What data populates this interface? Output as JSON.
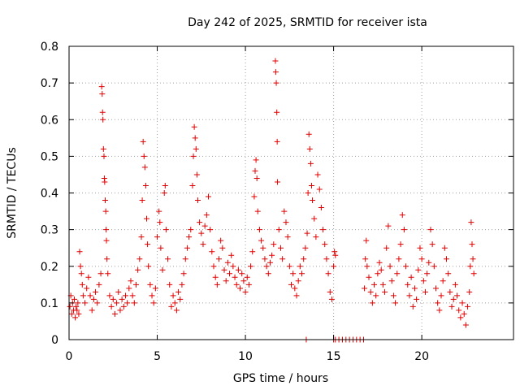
{
  "chart_data": {
    "type": "scatter",
    "title": "Day 242 of 2025, SRMTID for receiver ista",
    "xlabel": "GPS time / hours",
    "ylabel": "SRMTID / TECUs",
    "xlim": [
      0,
      25.2
    ],
    "ylim": [
      0,
      0.8
    ],
    "x_ticks": [
      0,
      5,
      10,
      15,
      20
    ],
    "y_ticks": [
      0,
      0.1,
      0.2,
      0.3,
      0.4,
      0.5,
      0.6,
      0.7,
      0.8
    ],
    "x_tick_labels": [
      "0",
      "5",
      "10",
      "15",
      "20"
    ],
    "y_tick_labels": [
      "0",
      "0.1",
      "0.2",
      "0.3",
      "0.4",
      "0.5",
      "0.6",
      "0.7",
      "0.8"
    ],
    "grid": true,
    "marker": "+",
    "color": "#e00000",
    "series": [
      {
        "name": "SRMTID",
        "points": [
          [
            0.05,
            0.09
          ],
          [
            0.1,
            0.12
          ],
          [
            0.15,
            0.07
          ],
          [
            0.2,
            0.1
          ],
          [
            0.25,
            0.08
          ],
          [
            0.3,
            0.11
          ],
          [
            0.35,
            0.06
          ],
          [
            0.4,
            0.09
          ],
          [
            0.45,
            0.08
          ],
          [
            0.5,
            0.1
          ],
          [
            0.55,
            0.07
          ],
          [
            0.6,
            0.24
          ],
          [
            0.65,
            0.2
          ],
          [
            0.7,
            0.18
          ],
          [
            0.75,
            0.15
          ],
          [
            0.8,
            0.12
          ],
          [
            0.9,
            0.1
          ],
          [
            1.0,
            0.14
          ],
          [
            1.1,
            0.17
          ],
          [
            1.2,
            0.12
          ],
          [
            1.3,
            0.08
          ],
          [
            1.4,
            0.11
          ],
          [
            1.5,
            0.13
          ],
          [
            1.6,
            0.1
          ],
          [
            1.7,
            0.15
          ],
          [
            1.8,
            0.18
          ],
          [
            1.85,
            0.69
          ],
          [
            1.88,
            0.67
          ],
          [
            1.9,
            0.62
          ],
          [
            1.92,
            0.6
          ],
          [
            1.95,
            0.52
          ],
          [
            1.98,
            0.5
          ],
          [
            2.0,
            0.44
          ],
          [
            2.02,
            0.43
          ],
          [
            2.05,
            0.38
          ],
          [
            2.08,
            0.35
          ],
          [
            2.1,
            0.3
          ],
          [
            2.12,
            0.27
          ],
          [
            2.15,
            0.22
          ],
          [
            2.2,
            0.18
          ],
          [
            2.3,
            0.12
          ],
          [
            2.4,
            0.09
          ],
          [
            2.5,
            0.11
          ],
          [
            2.6,
            0.07
          ],
          [
            2.7,
            0.1
          ],
          [
            2.8,
            0.13
          ],
          [
            2.9,
            0.08
          ],
          [
            3.0,
            0.11
          ],
          [
            3.1,
            0.09
          ],
          [
            3.2,
            0.12
          ],
          [
            3.3,
            0.1
          ],
          [
            3.4,
            0.14
          ],
          [
            3.5,
            0.16
          ],
          [
            3.6,
            0.12
          ],
          [
            3.7,
            0.1
          ],
          [
            3.8,
            0.15
          ],
          [
            3.9,
            0.19
          ],
          [
            4.0,
            0.22
          ],
          [
            4.1,
            0.28
          ],
          [
            4.15,
            0.38
          ],
          [
            4.2,
            0.54
          ],
          [
            4.25,
            0.5
          ],
          [
            4.3,
            0.47
          ],
          [
            4.35,
            0.42
          ],
          [
            4.4,
            0.33
          ],
          [
            4.45,
            0.26
          ],
          [
            4.5,
            0.2
          ],
          [
            4.6,
            0.15
          ],
          [
            4.7,
            0.12
          ],
          [
            4.8,
            0.1
          ],
          [
            4.9,
            0.14
          ],
          [
            5.0,
            0.28
          ],
          [
            5.1,
            0.35
          ],
          [
            5.15,
            0.32
          ],
          [
            5.2,
            0.25
          ],
          [
            5.3,
            0.19
          ],
          [
            5.4,
            0.4
          ],
          [
            5.45,
            0.42
          ],
          [
            5.5,
            0.3
          ],
          [
            5.6,
            0.22
          ],
          [
            5.7,
            0.15
          ],
          [
            5.8,
            0.09
          ],
          [
            5.9,
            0.12
          ],
          [
            6.0,
            0.1
          ],
          [
            6.1,
            0.08
          ],
          [
            6.2,
            0.13
          ],
          [
            6.3,
            0.11
          ],
          [
            6.4,
            0.15
          ],
          [
            6.5,
            0.18
          ],
          [
            6.6,
            0.22
          ],
          [
            6.7,
            0.25
          ],
          [
            6.8,
            0.28
          ],
          [
            6.9,
            0.3
          ],
          [
            7.0,
            0.42
          ],
          [
            7.05,
            0.5
          ],
          [
            7.1,
            0.58
          ],
          [
            7.15,
            0.55
          ],
          [
            7.2,
            0.52
          ],
          [
            7.25,
            0.45
          ],
          [
            7.3,
            0.38
          ],
          [
            7.4,
            0.32
          ],
          [
            7.5,
            0.29
          ],
          [
            7.6,
            0.26
          ],
          [
            7.7,
            0.31
          ],
          [
            7.8,
            0.34
          ],
          [
            7.9,
            0.39
          ],
          [
            8.0,
            0.3
          ],
          [
            8.1,
            0.24
          ],
          [
            8.2,
            0.2
          ],
          [
            8.3,
            0.17
          ],
          [
            8.4,
            0.15
          ],
          [
            8.5,
            0.22
          ],
          [
            8.6,
            0.27
          ],
          [
            8.7,
            0.25
          ],
          [
            8.8,
            0.19
          ],
          [
            8.9,
            0.16
          ],
          [
            9.0,
            0.21
          ],
          [
            9.1,
            0.18
          ],
          [
            9.2,
            0.23
          ],
          [
            9.3,
            0.2
          ],
          [
            9.4,
            0.17
          ],
          [
            9.5,
            0.15
          ],
          [
            9.6,
            0.19
          ],
          [
            9.7,
            0.14
          ],
          [
            9.8,
            0.18
          ],
          [
            9.9,
            0.16
          ],
          [
            10.0,
            0.13
          ],
          [
            10.1,
            0.17
          ],
          [
            10.2,
            0.15
          ],
          [
            10.3,
            0.2
          ],
          [
            10.4,
            0.24
          ],
          [
            10.5,
            0.39
          ],
          [
            10.55,
            0.46
          ],
          [
            10.6,
            0.49
          ],
          [
            10.65,
            0.44
          ],
          [
            10.7,
            0.35
          ],
          [
            10.8,
            0.3
          ],
          [
            10.9,
            0.27
          ],
          [
            11.0,
            0.25
          ],
          [
            11.1,
            0.22
          ],
          [
            11.2,
            0.2
          ],
          [
            11.3,
            0.18
          ],
          [
            11.4,
            0.21
          ],
          [
            11.5,
            0.23
          ],
          [
            11.6,
            0.26
          ],
          [
            11.7,
            0.76
          ],
          [
            11.72,
            0.73
          ],
          [
            11.75,
            0.7
          ],
          [
            11.78,
            0.62
          ],
          [
            11.8,
            0.54
          ],
          [
            11.82,
            0.43
          ],
          [
            11.9,
            0.3
          ],
          [
            12.0,
            0.25
          ],
          [
            12.1,
            0.22
          ],
          [
            12.2,
            0.35
          ],
          [
            12.3,
            0.32
          ],
          [
            12.4,
            0.28
          ],
          [
            12.5,
            0.2
          ],
          [
            12.6,
            0.15
          ],
          [
            12.7,
            0.18
          ],
          [
            12.8,
            0.14
          ],
          [
            12.9,
            0.12
          ],
          [
            13.0,
            0.16
          ],
          [
            13.1,
            0.2
          ],
          [
            13.2,
            0.18
          ],
          [
            13.3,
            0.22
          ],
          [
            13.4,
            0.25
          ],
          [
            13.5,
            0.29
          ],
          [
            13.55,
            0.4
          ],
          [
            13.6,
            0.56
          ],
          [
            13.65,
            0.52
          ],
          [
            13.7,
            0.48
          ],
          [
            13.75,
            0.42
          ],
          [
            13.8,
            0.38
          ],
          [
            13.9,
            0.33
          ],
          [
            14.0,
            0.28
          ],
          [
            14.1,
            0.45
          ],
          [
            14.2,
            0.41
          ],
          [
            14.3,
            0.36
          ],
          [
            14.4,
            0.3
          ],
          [
            14.5,
            0.26
          ],
          [
            14.6,
            0.22
          ],
          [
            14.7,
            0.18
          ],
          [
            14.8,
            0.13
          ],
          [
            14.9,
            0.11
          ],
          [
            15.0,
            0.2
          ],
          [
            15.05,
            0.24
          ],
          [
            15.1,
            0.23
          ],
          [
            13.45,
            0.0
          ],
          [
            15.0,
            0.0
          ],
          [
            15.1,
            0.0
          ],
          [
            15.3,
            0.0
          ],
          [
            15.5,
            0.0
          ],
          [
            15.7,
            0.0
          ],
          [
            15.9,
            0.0
          ],
          [
            16.1,
            0.0
          ],
          [
            16.3,
            0.0
          ],
          [
            16.5,
            0.0
          ],
          [
            16.7,
            0.0
          ],
          [
            16.75,
            0.14
          ],
          [
            16.8,
            0.22
          ],
          [
            16.85,
            0.27
          ],
          [
            16.9,
            0.2
          ],
          [
            17.0,
            0.17
          ],
          [
            17.1,
            0.13
          ],
          [
            17.2,
            0.1
          ],
          [
            17.3,
            0.15
          ],
          [
            17.4,
            0.12
          ],
          [
            17.5,
            0.18
          ],
          [
            17.6,
            0.21
          ],
          [
            17.7,
            0.19
          ],
          [
            17.8,
            0.15
          ],
          [
            17.9,
            0.13
          ],
          [
            18.0,
            0.25
          ],
          [
            18.1,
            0.31
          ],
          [
            18.2,
            0.2
          ],
          [
            18.3,
            0.16
          ],
          [
            18.4,
            0.12
          ],
          [
            18.5,
            0.1
          ],
          [
            18.6,
            0.18
          ],
          [
            18.7,
            0.22
          ],
          [
            18.8,
            0.26
          ],
          [
            18.9,
            0.34
          ],
          [
            19.0,
            0.3
          ],
          [
            19.1,
            0.2
          ],
          [
            19.2,
            0.15
          ],
          [
            19.3,
            0.12
          ],
          [
            19.4,
            0.17
          ],
          [
            19.5,
            0.09
          ],
          [
            19.6,
            0.14
          ],
          [
            19.7,
            0.11
          ],
          [
            19.8,
            0.19
          ],
          [
            19.9,
            0.25
          ],
          [
            20.0,
            0.22
          ],
          [
            20.1,
            0.16
          ],
          [
            20.2,
            0.13
          ],
          [
            20.3,
            0.18
          ],
          [
            20.4,
            0.21
          ],
          [
            20.5,
            0.3
          ],
          [
            20.6,
            0.26
          ],
          [
            20.7,
            0.2
          ],
          [
            20.8,
            0.14
          ],
          [
            20.9,
            0.1
          ],
          [
            21.0,
            0.08
          ],
          [
            21.1,
            0.12
          ],
          [
            21.2,
            0.16
          ],
          [
            21.3,
            0.25
          ],
          [
            21.4,
            0.22
          ],
          [
            21.5,
            0.18
          ],
          [
            21.6,
            0.13
          ],
          [
            21.7,
            0.09
          ],
          [
            21.8,
            0.11
          ],
          [
            21.9,
            0.15
          ],
          [
            22.0,
            0.12
          ],
          [
            22.1,
            0.08
          ],
          [
            22.2,
            0.06
          ],
          [
            22.3,
            0.1
          ],
          [
            22.4,
            0.07
          ],
          [
            22.5,
            0.04
          ],
          [
            22.6,
            0.09
          ],
          [
            22.7,
            0.13
          ],
          [
            22.75,
            0.2
          ],
          [
            22.8,
            0.32
          ],
          [
            22.85,
            0.26
          ],
          [
            22.9,
            0.22
          ],
          [
            22.95,
            0.18
          ]
        ]
      }
    ]
  }
}
